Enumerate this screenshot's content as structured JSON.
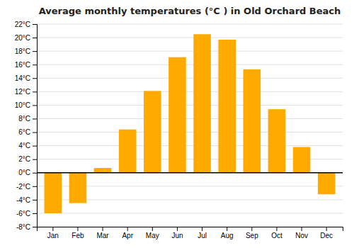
{
  "chart_data": {
    "type": "bar",
    "title": "Average monthly temperatures (°C ) in Old Orchard Beach",
    "categories": [
      "Jan",
      "Feb",
      "Mar",
      "Apr",
      "May",
      "Jun",
      "Jul",
      "Aug",
      "Sep",
      "Oct",
      "Nov",
      "Dec"
    ],
    "values": [
      -6.0,
      -4.5,
      0.7,
      6.4,
      12.1,
      17.1,
      20.5,
      19.7,
      15.3,
      9.4,
      3.8,
      -3.2
    ],
    "color": "#FFAA00",
    "ylim": [
      -8,
      22
    ],
    "yticks": [
      {
        "value": -8,
        "label": "-8°C"
      },
      {
        "value": -6,
        "label": "-6°C"
      },
      {
        "value": -4,
        "label": "-4°C"
      },
      {
        "value": -2,
        "label": "-2°C"
      },
      {
        "value": 0,
        "label": "0°C"
      },
      {
        "value": 2,
        "label": "2°C"
      },
      {
        "value": 4,
        "label": "4°C"
      },
      {
        "value": 6,
        "label": "6°C"
      },
      {
        "value": 8,
        "label": "8°C"
      },
      {
        "value": 10,
        "label": "10°C"
      },
      {
        "value": 12,
        "label": "12°C"
      },
      {
        "value": 14,
        "label": "14°C"
      },
      {
        "value": 16,
        "label": "16°C"
      },
      {
        "value": 18,
        "label": "18°C"
      },
      {
        "value": 20,
        "label": "20°C"
      },
      {
        "value": 22,
        "label": "22°C"
      }
    ],
    "grid": true
  }
}
